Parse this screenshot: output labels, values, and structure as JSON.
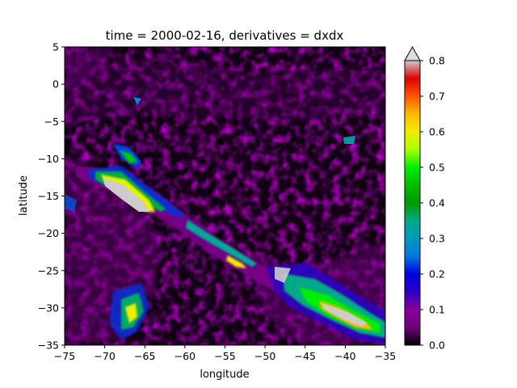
{
  "chart_data": {
    "type": "heatmap",
    "title": "time = 2000-02-16, derivatives = dxdx",
    "xlabel": "longitude",
    "ylabel": "latitude",
    "xlim": [
      -75,
      -35
    ],
    "ylim": [
      -35,
      5
    ],
    "x_ticks": [
      "−75",
      "−70",
      "−65",
      "−60",
      "−55",
      "−50",
      "−45",
      "−40",
      "−35"
    ],
    "y_ticks": [
      "5",
      "0",
      "−5",
      "−10",
      "−15",
      "−20",
      "−25",
      "−30",
      "−35"
    ],
    "colorbar": {
      "colormap": "nipy_spectral",
      "vmin": 0.0,
      "vmax": 0.8,
      "extend": "max",
      "ticks": [
        "0.0",
        "0.1",
        "0.2",
        "0.3",
        "0.4",
        "0.5",
        "0.6",
        "0.7",
        "0.8"
      ],
      "stops": [
        "#000000",
        "#6d007b",
        "#8a0099",
        "#2b00c8",
        "#0000dd",
        "#0077dd",
        "#0099bb",
        "#00aa88",
        "#009900",
        "#00bb00",
        "#00ee00",
        "#aaff00",
        "#eeee00",
        "#ffbb00",
        "#ff5500",
        "#dd0000",
        "#cccccc"
      ]
    }
  }
}
